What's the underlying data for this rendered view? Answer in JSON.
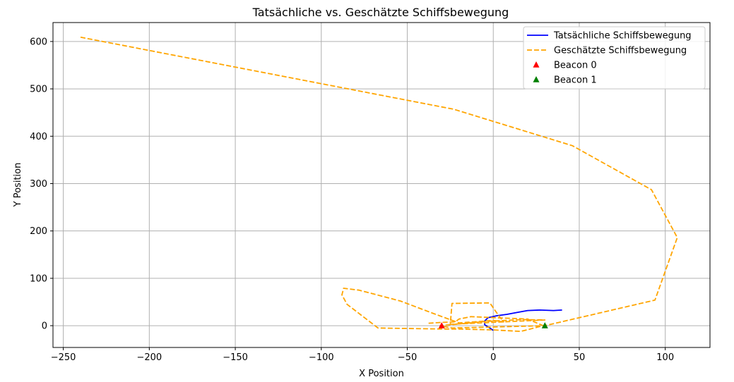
{
  "chart_data": {
    "type": "line",
    "title": "Tatsächliche vs. Geschätzte Schiffsbewegung",
    "xlabel": "X Position",
    "ylabel": "Y Position",
    "xlim": [
      -256,
      126
    ],
    "ylim": [
      -46,
      640
    ],
    "xticks": [
      -250,
      -200,
      -150,
      -100,
      -50,
      0,
      50,
      100
    ],
    "yticks": [
      0,
      100,
      200,
      300,
      400,
      500,
      600
    ],
    "grid": true,
    "legend_position": "top-right",
    "series": [
      {
        "name": "Tatsächliche Schiffsbewegung",
        "kind": "line",
        "style": "solid",
        "color": "#0000ff",
        "x": [
          0,
          -2,
          -5,
          -5,
          -3,
          2,
          8,
          14,
          20,
          27,
          35,
          40
        ],
        "y": [
          -10,
          -5,
          2,
          10,
          17,
          21,
          24,
          28,
          32,
          33,
          32,
          33
        ]
      },
      {
        "name": "Geschätzte Schiffsbewegung",
        "kind": "line",
        "style": "dashed",
        "color": "#ffa500",
        "x": [
          -240,
          -23,
          46,
          92,
          107,
          94,
          30,
          -24,
          -31,
          -4,
          17,
          30,
          -25,
          -24,
          -2,
          3,
          6,
          0,
          -20,
          -35,
          -54,
          -78,
          -87,
          -88,
          -85,
          -67,
          -30,
          -20,
          0,
          16,
          29,
          20,
          -13,
          -20,
          -22,
          -30,
          -38
        ],
        "y": [
          609,
          457,
          380,
          287,
          186,
          54,
          0,
          -5,
          0,
          9,
          13,
          12,
          3,
          47,
          48,
          22,
          8,
          11,
          6,
          26,
          52,
          75,
          79,
          65,
          45,
          -5,
          -7,
          -7,
          -9,
          -12,
          0,
          14,
          19,
          14,
          8,
          7,
          5
        ]
      },
      {
        "name": "Beacon 0",
        "kind": "marker",
        "marker": "triangle",
        "color": "#ff0000",
        "x": [
          -30
        ],
        "y": [
          0
        ]
      },
      {
        "name": "Beacon 1",
        "kind": "marker",
        "marker": "triangle",
        "color": "#008000",
        "x": [
          30
        ],
        "y": [
          0
        ]
      }
    ]
  }
}
